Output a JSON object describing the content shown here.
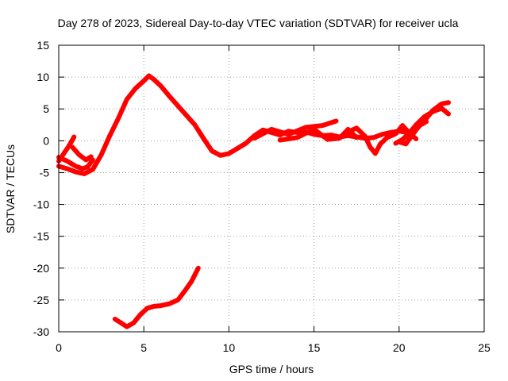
{
  "chart_data": {
    "type": "line",
    "title": "Day 278 of 2023, Sidereal Day-to-day VTEC variation (SDTVAR) for receiver ucla",
    "xlabel": "GPS time / hours",
    "ylabel": "SDTVAR / TECUs",
    "xlim": [
      0,
      25
    ],
    "ylim": [
      -30,
      15
    ],
    "xticks": [
      0,
      5,
      10,
      15,
      20,
      25
    ],
    "yticks": [
      -30,
      -25,
      -20,
      -15,
      -10,
      -5,
      0,
      5,
      10,
      15
    ],
    "grid": true,
    "color": "#ff0000",
    "series": [
      {
        "name": "track-a",
        "points": [
          [
            0.0,
            -3.2
          ],
          [
            0.3,
            -2.0
          ],
          [
            0.6,
            -0.8
          ],
          [
            0.9,
            0.6
          ]
        ]
      },
      {
        "name": "track-b",
        "points": [
          [
            0.0,
            -2.6
          ],
          [
            0.5,
            -3.2
          ],
          [
            1.0,
            -4.0
          ],
          [
            1.4,
            -4.4
          ],
          [
            1.7,
            -4.1
          ],
          [
            2.0,
            -3.0
          ]
        ]
      },
      {
        "name": "track-c",
        "points": [
          [
            0.8,
            -1.0
          ],
          [
            1.2,
            -2.2
          ],
          [
            1.6,
            -3.0
          ],
          [
            1.9,
            -2.5
          ]
        ]
      },
      {
        "name": "main-arc",
        "points": [
          [
            0.0,
            -4.0
          ],
          [
            0.5,
            -4.4
          ],
          [
            1.0,
            -4.9
          ],
          [
            1.5,
            -5.2
          ],
          [
            2.0,
            -4.5
          ],
          [
            2.5,
            -2.2
          ],
          [
            3.0,
            0.8
          ],
          [
            3.5,
            3.5
          ],
          [
            4.0,
            6.5
          ],
          [
            4.5,
            8.2
          ],
          [
            5.0,
            9.4
          ],
          [
            5.3,
            10.2
          ],
          [
            5.6,
            9.6
          ],
          [
            6.0,
            8.6
          ],
          [
            6.5,
            7.0
          ],
          [
            7.0,
            5.5
          ],
          [
            7.5,
            4.0
          ],
          [
            8.0,
            2.5
          ],
          [
            8.5,
            0.4
          ],
          [
            9.0,
            -1.6
          ],
          [
            9.5,
            -2.3
          ],
          [
            10.0,
            -2.0
          ],
          [
            10.5,
            -1.2
          ],
          [
            11.0,
            -0.4
          ],
          [
            11.5,
            0.8
          ],
          [
            12.0,
            1.7
          ],
          [
            12.5,
            1.3
          ],
          [
            13.0,
            0.9
          ],
          [
            13.5,
            1.5
          ],
          [
            14.0,
            1.3
          ],
          [
            14.5,
            1.4
          ],
          [
            15.0,
            1.0
          ],
          [
            15.5,
            0.8
          ],
          [
            16.0,
            0.9
          ],
          [
            16.5,
            0.6
          ],
          [
            17.0,
            0.8
          ],
          [
            17.5,
            0.6
          ],
          [
            18.0,
            0.4
          ],
          [
            18.5,
            0.5
          ],
          [
            19.0,
            1.0
          ],
          [
            19.5,
            1.3
          ],
          [
            20.0,
            1.5
          ],
          [
            20.5,
            1.3
          ],
          [
            21.0,
            1.8
          ],
          [
            21.5,
            3.2
          ],
          [
            22.0,
            4.8
          ],
          [
            22.5,
            5.8
          ],
          [
            22.9,
            6.0
          ]
        ]
      },
      {
        "name": "mid-upper",
        "points": [
          [
            11.5,
            0.4
          ],
          [
            12.5,
            1.8
          ],
          [
            13.5,
            1.0
          ],
          [
            14.5,
            2.1
          ],
          [
            15.5,
            2.4
          ],
          [
            16.3,
            3.1
          ]
        ]
      },
      {
        "name": "mid-lower",
        "points": [
          [
            13.0,
            0.1
          ],
          [
            14.0,
            0.5
          ],
          [
            15.0,
            1.8
          ],
          [
            15.8,
            0.2
          ],
          [
            16.5,
            0.4
          ],
          [
            17.0,
            1.8
          ],
          [
            17.5,
            0.5
          ]
        ]
      },
      {
        "name": "right-wiggle",
        "points": [
          [
            17.0,
            1.4
          ],
          [
            17.5,
            2.0
          ],
          [
            18.0,
            0.7
          ],
          [
            18.3,
            -1.0
          ],
          [
            18.6,
            -2.0
          ],
          [
            18.9,
            -0.5
          ],
          [
            19.3,
            0.5
          ],
          [
            19.8,
            1.1
          ],
          [
            20.2,
            2.4
          ],
          [
            20.6,
            1.2
          ],
          [
            21.0,
            0.3
          ]
        ]
      },
      {
        "name": "right-rise",
        "points": [
          [
            19.8,
            -0.4
          ],
          [
            20.2,
            0.2
          ],
          [
            20.6,
            1.2
          ],
          [
            21.0,
            2.5
          ],
          [
            21.5,
            3.8
          ],
          [
            22.0,
            4.6
          ],
          [
            22.5,
            5.1
          ],
          [
            22.9,
            4.2
          ]
        ]
      },
      {
        "name": "right-low",
        "points": [
          [
            20.0,
            -0.2
          ],
          [
            20.4,
            -0.5
          ],
          [
            20.8,
            1.0
          ],
          [
            21.2,
            2.4
          ],
          [
            21.6,
            3.0
          ]
        ]
      },
      {
        "name": "lower-track",
        "points": [
          [
            3.3,
            -28.0
          ],
          [
            3.6,
            -28.5
          ],
          [
            4.0,
            -29.2
          ],
          [
            4.4,
            -28.6
          ],
          [
            4.8,
            -27.3
          ],
          [
            5.2,
            -26.3
          ],
          [
            5.6,
            -26.0
          ],
          [
            6.0,
            -25.9
          ],
          [
            6.5,
            -25.6
          ],
          [
            7.0,
            -25.0
          ],
          [
            7.4,
            -23.6
          ],
          [
            7.8,
            -22.1
          ],
          [
            8.2,
            -20.0
          ]
        ]
      }
    ]
  }
}
